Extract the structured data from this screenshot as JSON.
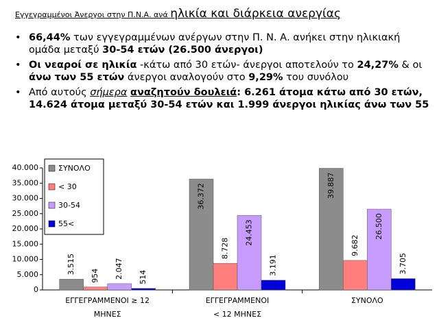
{
  "title": {
    "runs": [
      {
        "text": "Εγγεγραμμένοι Άνεργοι στην Π.Ν.Α. ανά ",
        "size": "small"
      },
      {
        "text": "ηλικία και διάρκεια ανεργίας",
        "size": "large"
      }
    ]
  },
  "bullets": [
    {
      "runs": [
        {
          "text": "66,44%",
          "b": true
        },
        {
          "text": " των  εγγεγραμμένων ανέργων στην Π. Ν. Α. ανήκει στην ηλικιακή ομάδα μεταξύ "
        },
        {
          "text": "30-54 ετών (26.500 άνεργοι)",
          "b": true
        }
      ]
    },
    {
      "runs": [
        {
          "text": "Οι νεαροί σε ηλικία",
          "b": true
        },
        {
          "text": " -κάτω από 30 ετών- άνεργοι αποτελούν το "
        },
        {
          "text": "24,27%",
          "b": true
        },
        {
          "text": " & οι "
        },
        {
          "text": "άνω των 55 ετών",
          "b": true
        },
        {
          "text": " άνεργοι αναλογούν στο "
        },
        {
          "text": "9,29%",
          "b": true
        },
        {
          "text": " του συνόλου"
        }
      ]
    },
    {
      "runs": [
        {
          "text": "Από αυτούς "
        },
        {
          "text": "σήμερα",
          "i": true,
          "u": true
        },
        {
          "text": " "
        },
        {
          "text": "αναζητούν δουλειά",
          "b": true,
          "u": true
        },
        {
          "text": ": 6.261 άτομα κάτω από 30 ετών, 14.624 άτομα μεταξύ 30-54 ετών και 1.999 άνεργοι ηλικίας άνω των 55",
          "b": true
        }
      ]
    }
  ],
  "chart_data": {
    "type": "bar",
    "categories": [
      [
        "ΕΓΓΕΓΡΑΜΜΕΝΟΙ    ≥ 12",
        "ΜΗΝΕΣ"
      ],
      [
        "ΕΓΓΕΓΡΑΜΜΕΝΟΙ",
        "< 12 ΜΗΝΕΣ"
      ],
      [
        "ΣΥΝΟΛΟ"
      ]
    ],
    "series": [
      {
        "name": "ΣΥΝΟΛΟ",
        "color": "#8c8c8c",
        "values": [
          3515,
          36372,
          39887
        ],
        "value_labels": [
          "3.515",
          "36.372",
          "39.887"
        ]
      },
      {
        "name": "< 30",
        "color": "#ff7f7f",
        "values": [
          954,
          8728,
          9682
        ],
        "value_labels": [
          "954",
          "8.728",
          "9.682"
        ]
      },
      {
        "name": "30-54",
        "color": "#c89cff",
        "values": [
          2047,
          24453,
          26500
        ],
        "value_labels": [
          "2.047",
          "24.453",
          "26.500"
        ]
      },
      {
        "name": "55<",
        "color": "#0000d8",
        "values": [
          514,
          3191,
          3705
        ],
        "value_labels": [
          "514",
          "3.191",
          "3.705"
        ]
      }
    ],
    "ylim": [
      0,
      40000
    ],
    "yticks": [
      0,
      {
        "value": 5000,
        "label": "5.000"
      },
      {
        "value": 10000,
        "label": "10.000"
      },
      {
        "value": 15000,
        "label": "15.000"
      },
      {
        "value": 20000,
        "label": "20.000"
      },
      {
        "value": 25000,
        "label": "25.000"
      },
      {
        "value": 30000,
        "label": "30.000"
      },
      {
        "value": 35000,
        "label": "35.000"
      },
      {
        "value": 40000,
        "label": "40.000"
      }
    ],
    "legend": "upper left"
  }
}
